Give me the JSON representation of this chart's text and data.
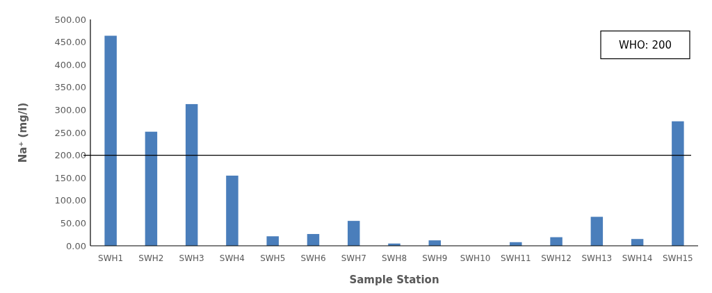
{
  "chart_data": {
    "type": "bar",
    "xlabel": "Sample Station",
    "ylabel": "Na⁺ (mg/l)",
    "categories": [
      "SWH1",
      "SWH2",
      "SWH3",
      "SWH4",
      "SWH5",
      "SWH6",
      "SWH7",
      "SWH8",
      "SWH9",
      "SWH10",
      "SWH11",
      "SWH12",
      "SWH13",
      "SWH14",
      "SWH15"
    ],
    "values": [
      464,
      252,
      313,
      155,
      21,
      26,
      55,
      5,
      12,
      0,
      8,
      19,
      64,
      15,
      275
    ],
    "color": "#4a7ebb",
    "ylim": [
      0,
      500
    ],
    "yticks": [
      {
        "value": 0,
        "label": "0.00"
      },
      {
        "value": 50,
        "label": "50.00"
      },
      {
        "value": 100,
        "label": "100.00"
      },
      {
        "value": 150,
        "label": "150.00"
      },
      {
        "value": 200,
        "label": "200.00"
      },
      {
        "value": 250,
        "label": "250.00"
      },
      {
        "value": 300,
        "label": "300.00"
      },
      {
        "value": 350,
        "label": "350.00"
      },
      {
        "value": 400,
        "label": "400.00"
      },
      {
        "value": 450,
        "label": "450.00"
      },
      {
        "value": 500,
        "label": "500.00"
      }
    ],
    "ref_lines": [
      {
        "axis": "y",
        "value": 200,
        "label": "WHO: 200",
        "color": "#000000"
      }
    ],
    "grid": false
  }
}
